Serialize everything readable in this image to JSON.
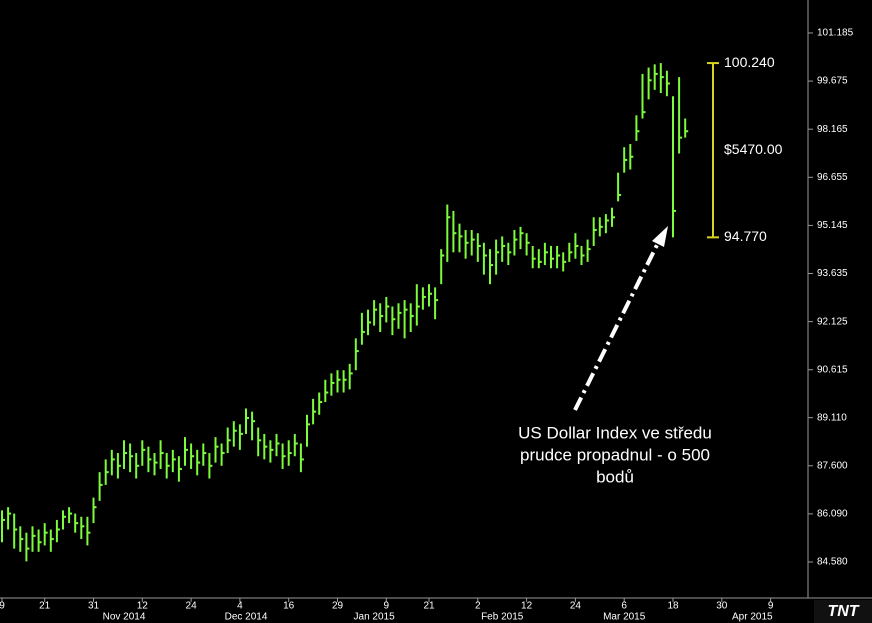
{
  "chart_data": {
    "type": "hlc",
    "color": "#7cfc3c",
    "ylim": [
      83.45,
      102.22
    ],
    "yticks": [
      {
        "value": 84.58,
        "label": "84.580"
      },
      {
        "value": 86.09,
        "label": "86.090"
      },
      {
        "value": 87.6,
        "label": "87.600"
      },
      {
        "value": 89.11,
        "label": "89.110"
      },
      90.615,
      92.125,
      93.635,
      95.145,
      96.655,
      98.165,
      99.675,
      101.185
    ],
    "categories": [
      "9",
      null,
      null,
      null,
      null,
      null,
      null,
      "21",
      null,
      null,
      null,
      null,
      null,
      null,
      null,
      "31",
      null,
      null,
      null,
      null,
      null,
      null,
      null,
      "12",
      null,
      null,
      null,
      null,
      null,
      null,
      null,
      "24",
      null,
      null,
      null,
      null,
      null,
      null,
      null,
      "4",
      null,
      null,
      null,
      null,
      null,
      null,
      null,
      "16",
      null,
      null,
      null,
      null,
      null,
      null,
      null,
      "29",
      null,
      null,
      null,
      null,
      null,
      null,
      null,
      "9",
      null,
      null,
      null,
      null,
      null,
      null,
      "21",
      null,
      null,
      null,
      null,
      null,
      null,
      null,
      "2",
      null,
      null,
      null,
      null,
      null,
      null,
      null,
      "12",
      null,
      null,
      null,
      null,
      null,
      null,
      null,
      "24",
      null,
      null,
      null,
      null,
      null,
      null,
      null,
      "6",
      null,
      null,
      null,
      null,
      null,
      null,
      null,
      "18",
      null,
      null,
      null,
      null,
      null,
      null,
      null,
      "30",
      null,
      null,
      null,
      null,
      null,
      null,
      null,
      "9"
    ],
    "months": [
      null,
      null,
      null,
      null,
      null,
      null,
      null,
      null,
      null,
      null,
      null,
      null,
      null,
      null,
      null,
      null,
      null,
      null,
      null,
      null,
      "Nov 2014",
      null,
      null,
      null,
      null,
      null,
      null,
      null,
      null,
      null,
      null,
      null,
      null,
      null,
      null,
      null,
      null,
      null,
      null,
      null,
      "Dec 2014",
      null,
      null,
      null,
      null,
      null,
      null,
      null,
      null,
      null,
      null,
      null,
      null,
      null,
      null,
      null,
      null,
      null,
      null,
      null,
      null,
      "Jan 2015",
      null,
      null,
      null,
      null,
      null,
      null,
      null,
      null,
      null,
      null,
      null,
      null,
      null,
      null,
      null,
      null,
      null,
      null,
      null,
      null,
      "Feb 2015",
      null,
      null,
      null,
      null,
      null,
      null,
      null,
      null,
      null,
      null,
      null,
      null,
      null,
      null,
      null,
      null,
      null,
      null,
      null,
      "Mar 2015",
      null,
      null,
      null,
      null,
      null,
      null,
      null,
      null,
      null,
      null,
      null,
      null,
      null,
      null,
      null,
      null,
      null,
      null,
      null,
      null,
      "Apr 2015",
      null,
      null,
      null
    ],
    "high": [
      86.2,
      86.3,
      86.1,
      85.7,
      85.5,
      85.7,
      85.6,
      85.8,
      85.6,
      85.9,
      86.2,
      86.3,
      86.1,
      86.0,
      86.0,
      86.6,
      87.4,
      87.8,
      88.1,
      88.0,
      88.4,
      88.3,
      88.0,
      88.4,
      88.2,
      88.0,
      88.4,
      88.0,
      88.1,
      87.9,
      88.5,
      88.3,
      88.1,
      88.3,
      88.0,
      88.5,
      88.3,
      88.8,
      89.0,
      88.9,
      89.4,
      89.3,
      88.8,
      88.6,
      88.4,
      88.6,
      88.3,
      88.4,
      88.6,
      88.3,
      89.2,
      89.7,
      89.9,
      90.3,
      90.5,
      90.6,
      90.6,
      90.8,
      91.6,
      92.4,
      92.5,
      92.8,
      92.7,
      92.9,
      92.6,
      92.7,
      92.8,
      92.7,
      93.3,
      93.2,
      93.3,
      93.2,
      94.4,
      95.8,
      95.6,
      95.2,
      95.0,
      95.0,
      94.9,
      94.6,
      94.4,
      94.7,
      94.8,
      94.6,
      95.0,
      95.1,
      94.9,
      94.5,
      94.4,
      94.6,
      94.5,
      94.5,
      94.3,
      94.6,
      94.9,
      94.5,
      94.7,
      95.4,
      95.4,
      95.5,
      95.7,
      96.8,
      97.6,
      97.7,
      98.6,
      99.9,
      100.1,
      100.2,
      100.24,
      100.0,
      99.2,
      99.8,
      98.5,
      null,
      null,
      null,
      null,
      null,
      null,
      null,
      null,
      null,
      null,
      null,
      null,
      null,
      null
    ],
    "low": [
      85.2,
      85.6,
      85.0,
      84.9,
      84.6,
      84.9,
      84.9,
      85.1,
      84.9,
      85.2,
      85.6,
      85.8,
      85.5,
      85.3,
      85.1,
      85.8,
      86.5,
      87.0,
      87.3,
      87.2,
      87.5,
      87.4,
      87.2,
      87.6,
      87.4,
      87.3,
      87.5,
      87.2,
      87.4,
      87.1,
      87.6,
      87.5,
      87.3,
      87.6,
      87.2,
      87.7,
      87.6,
      88.0,
      88.2,
      88.1,
      88.6,
      88.4,
      87.9,
      87.8,
      87.7,
      87.9,
      87.5,
      87.6,
      87.9,
      87.4,
      88.2,
      88.9,
      89.2,
      89.6,
      89.8,
      89.9,
      89.9,
      90.0,
      90.6,
      91.4,
      91.7,
      92.0,
      91.8,
      92.1,
      91.7,
      91.9,
      91.6,
      91.8,
      92.0,
      92.5,
      92.6,
      92.2,
      93.3,
      94.0,
      94.3,
      94.3,
      94.1,
      94.2,
      94.0,
      93.6,
      93.3,
      93.6,
      94.0,
      93.9,
      94.2,
      94.4,
      94.2,
      93.8,
      93.8,
      93.9,
      93.8,
      93.8,
      93.7,
      94.0,
      94.1,
      93.9,
      94.0,
      94.5,
      94.8,
      94.9,
      95.1,
      95.9,
      96.8,
      96.9,
      97.8,
      98.5,
      99.1,
      99.4,
      99.3,
      99.2,
      94.77,
      97.4,
      97.9,
      null,
      null,
      null,
      null,
      null,
      null,
      null,
      null,
      null,
      null,
      null,
      null,
      null,
      null
    ],
    "close": [
      85.9,
      86.1,
      85.6,
      85.3,
      85.0,
      85.4,
      85.2,
      85.5,
      85.3,
      85.6,
      86.0,
      86.1,
      85.8,
      85.7,
      85.5,
      86.3,
      87.0,
      87.4,
      87.8,
      87.6,
      88.0,
      87.9,
      87.6,
      88.1,
      87.8,
      87.7,
      88.0,
      87.6,
      87.8,
      87.5,
      88.1,
      87.9,
      87.7,
      88.0,
      87.6,
      88.2,
      88.0,
      88.4,
      88.7,
      88.6,
      89.1,
      89.0,
      88.4,
      88.2,
      88.1,
      88.3,
      87.9,
      88.0,
      88.3,
      87.8,
      88.9,
      89.3,
      89.6,
      89.9,
      90.2,
      90.3,
      90.3,
      90.5,
      91.2,
      91.8,
      92.1,
      92.5,
      92.3,
      92.6,
      92.2,
      92.4,
      92.5,
      92.3,
      92.6,
      92.9,
      93.0,
      92.8,
      94.2,
      95.4,
      94.9,
      94.8,
      94.6,
      94.7,
      94.5,
      94.2,
      93.9,
      94.3,
      94.5,
      94.3,
      94.7,
      94.9,
      94.6,
      94.1,
      94.0,
      94.3,
      94.1,
      94.2,
      94.0,
      94.3,
      94.5,
      94.2,
      94.4,
      95.0,
      95.1,
      95.3,
      95.4,
      96.1,
      97.2,
      97.3,
      98.1,
      98.7,
      99.7,
      99.9,
      99.8,
      99.6,
      95.6,
      97.9,
      98.1,
      null,
      null,
      null,
      null,
      null,
      null,
      null,
      null,
      null,
      null,
      null,
      null,
      null,
      null
    ],
    "range": {
      "values": [
        100.24,
        94.77
      ],
      "value_labels": [
        "100.240",
        "94.770"
      ],
      "span_label": "$5470.00",
      "color": "#d8d420"
    },
    "annotation": [
      "US Dollar Index ve středu",
      "prudce propadnul - o 500",
      "bodů"
    ],
    "logo": "TNT"
  }
}
